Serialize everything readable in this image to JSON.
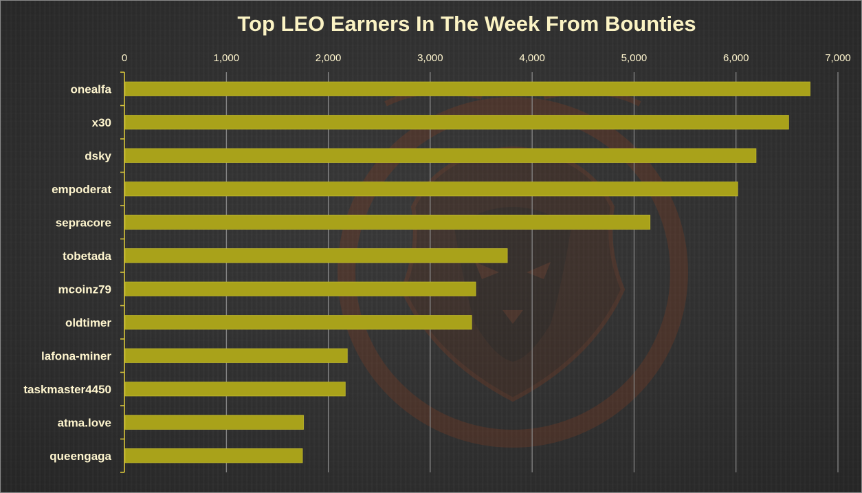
{
  "chart_data": {
    "type": "bar",
    "orientation": "horizontal",
    "title": "Top LEO Earners In The Week From Bounties",
    "xlabel": "",
    "ylabel": "",
    "xlim": [
      0,
      7000
    ],
    "x_ticks": [
      0,
      1000,
      2000,
      3000,
      4000,
      5000,
      6000,
      7000
    ],
    "x_tick_labels": [
      "0",
      "1,000",
      "2,000",
      "3,000",
      "4,000",
      "5,000",
      "6,000",
      "7,000"
    ],
    "x_axis_position": "top",
    "grid": true,
    "legend": "none",
    "categories": [
      "onealfa",
      "x30",
      "dsky",
      "empoderat",
      "sepracore",
      "tobetada",
      "mcoinz79",
      "oldtimer",
      "lafona-miner",
      "taskmaster4450",
      "atma.love",
      "queengaga"
    ],
    "values": [
      6720,
      6510,
      6190,
      6010,
      5150,
      3750,
      3440,
      3400,
      2180,
      2160,
      1750,
      1740
    ]
  },
  "colors": {
    "bar": "#a9a21a",
    "bar_edge": "#c2bb2c",
    "title": "#fbf3c4",
    "text": "#fff6cf",
    "axis": "#d9c63c",
    "grid": "#8d8d8d",
    "watermark": "#7a3a22"
  },
  "watermark_icon": "lion-logo"
}
